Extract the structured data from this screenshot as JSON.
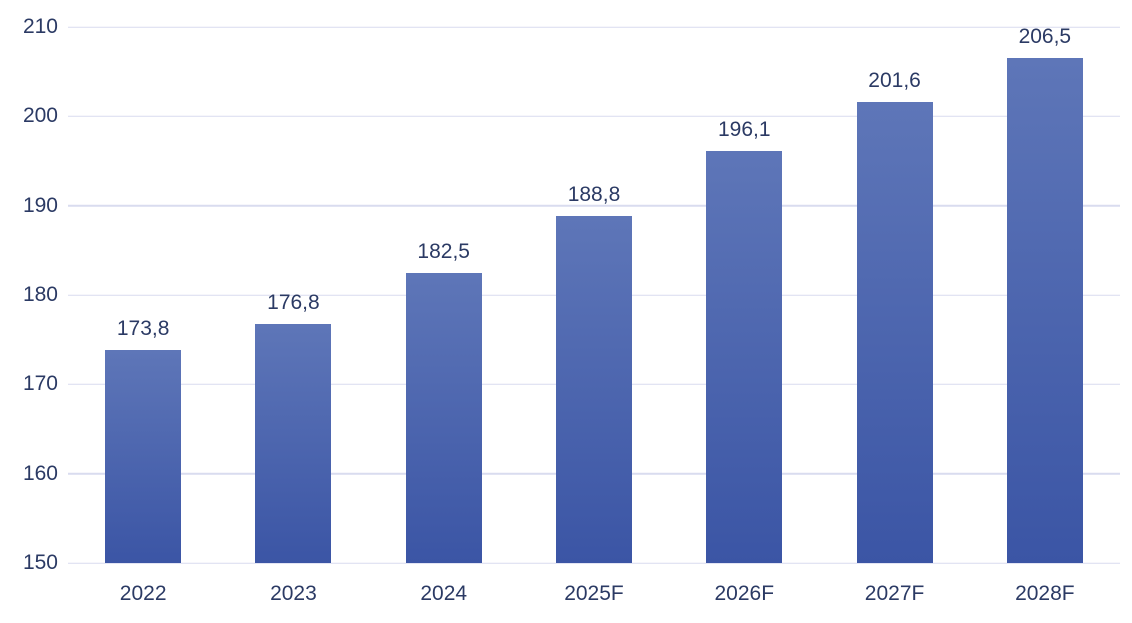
{
  "chart_data": {
    "type": "bar",
    "categories": [
      "2022",
      "2023",
      "2024",
      "2025F",
      "2026F",
      "2027F",
      "2028F"
    ],
    "values": [
      173.8,
      176.8,
      182.5,
      188.8,
      196.1,
      201.6,
      206.5
    ],
    "value_labels": [
      "173,8",
      "176,8",
      "182,5",
      "188,8",
      "196,1",
      "201,6",
      "206,5"
    ],
    "title": "",
    "xlabel": "",
    "ylabel": "",
    "ylim": [
      150,
      210
    ],
    "y_ticks": [
      150,
      160,
      170,
      180,
      190,
      200,
      210
    ],
    "grid": true,
    "legend": "none",
    "decimal_separator": ",",
    "colors": {
      "bar_gradient_top": "#5e76b8",
      "bar_gradient_bottom": "#3b55a5",
      "gridline": "#d9dcef",
      "text": "#2b3a64",
      "background": "#ffffff"
    }
  }
}
